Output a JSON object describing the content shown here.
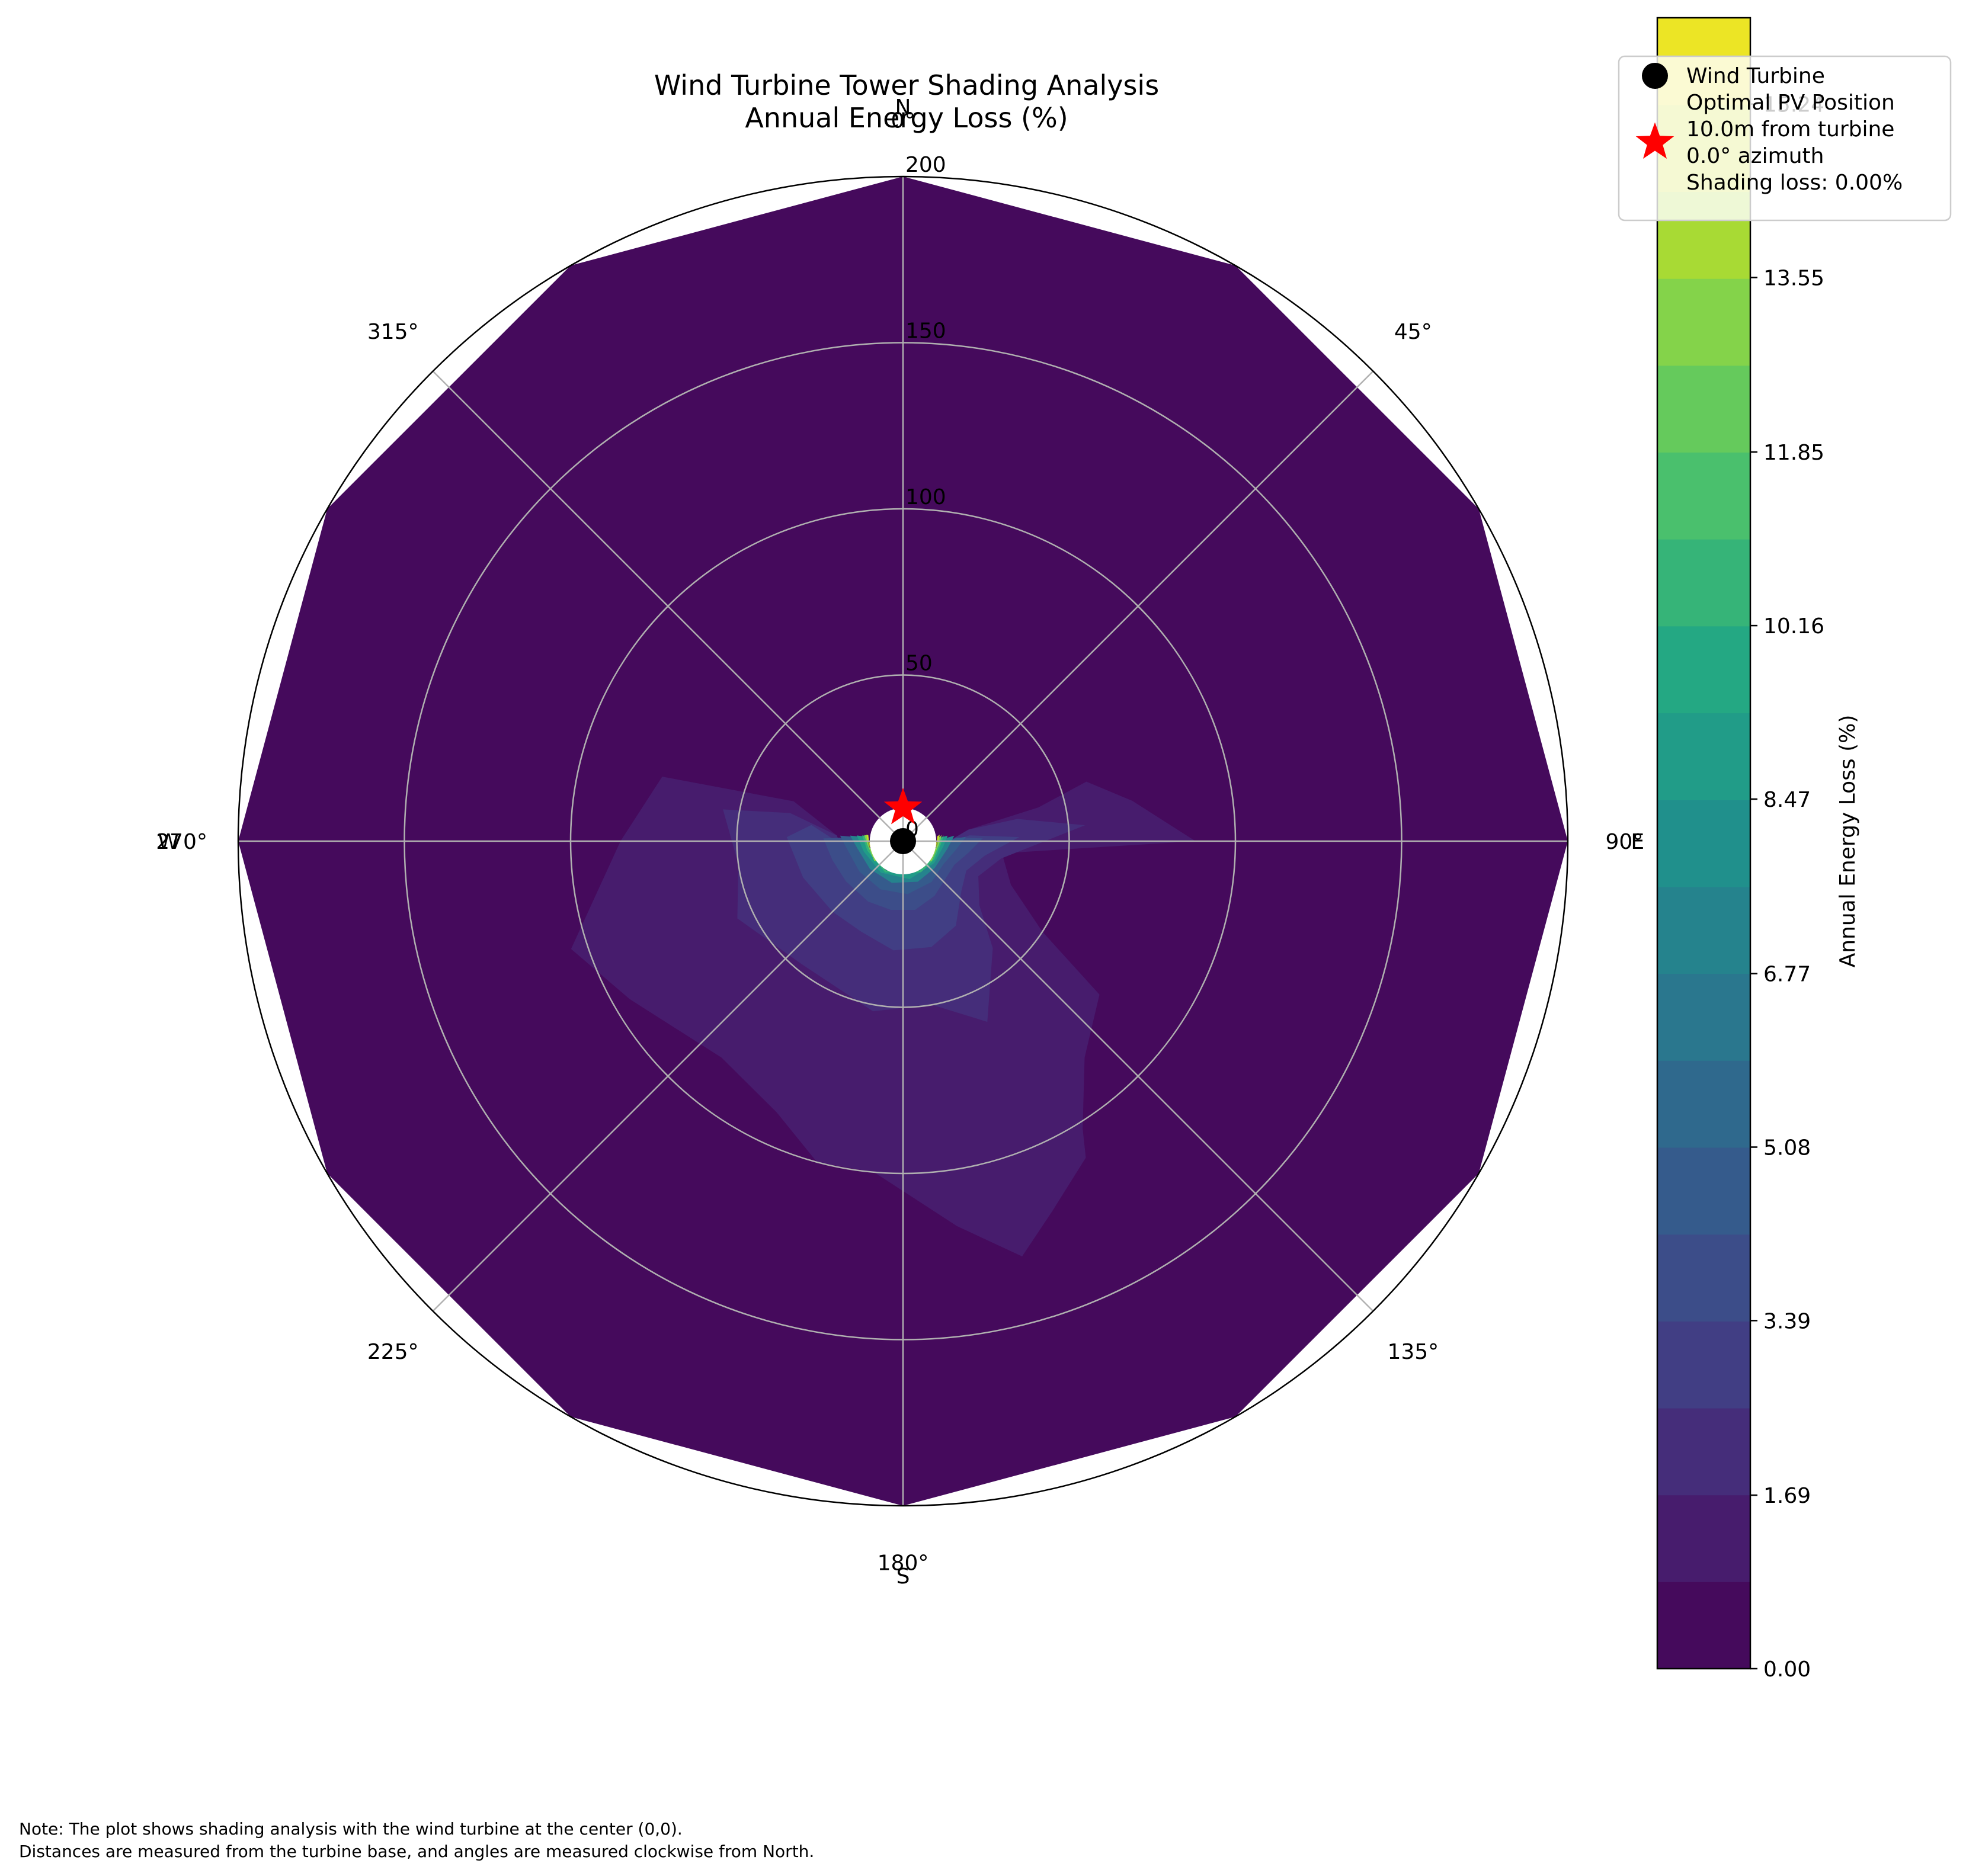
{
  "chart_data": {
    "type": "heatmap",
    "projection": "polar",
    "title_lines": [
      "Wind Turbine Tower Shading Analysis",
      "Annual Energy Loss (%)"
    ],
    "angle_direction": "clockwise",
    "zero_location": "N",
    "angle_ticks": [
      0,
      45,
      90,
      135,
      180,
      225,
      270,
      315
    ],
    "angle_tick_labels": [
      "0°",
      "45°",
      "90°",
      "135°",
      "180°",
      "225°",
      "270°",
      "315°"
    ],
    "cardinal_labels": [
      {
        "angle": 0,
        "text": "N"
      },
      {
        "angle": 90,
        "text": "E"
      },
      {
        "angle": 180,
        "text": "S"
      },
      {
        "angle": 270,
        "text": "W"
      }
    ],
    "radial_ticks": [
      0,
      50,
      100,
      150,
      200
    ],
    "radial_tick_labels": [
      "0",
      "50",
      "100",
      "150",
      "200"
    ],
    "rlim": [
      0,
      200
    ],
    "grid": true,
    "field": {
      "min_radius": 10,
      "max_radius": 200,
      "azimuth_step_deg": 30,
      "background_level": 0,
      "contours": [
        {
          "level": 1,
          "polygon": [
            [
              90,
              88
            ],
            [
              97,
              30
            ],
            [
              112,
              35
            ],
            [
              123,
              50
            ],
            [
              128,
              75
            ],
            [
              140,
              85
            ],
            [
              148,
              102
            ],
            [
              150,
              110
            ],
            [
              158,
              120
            ],
            [
              164,
              130
            ],
            [
              172,
              117
            ],
            [
              185,
              100
            ],
            [
              195,
              100
            ],
            [
              205,
              90
            ],
            [
              220,
              85
            ],
            [
              240,
              95
            ],
            [
              252,
              105
            ],
            [
              270,
              85
            ],
            [
              285,
              75
            ],
            [
              290,
              35
            ],
            [
              275,
              20
            ],
            [
              255,
              18
            ],
            [
              240,
              15
            ],
            [
              215,
              12
            ],
            [
              185,
              12
            ],
            [
              160,
              12
            ],
            [
              135,
              12
            ],
            [
              110,
              12
            ],
            [
              95,
              12
            ],
            [
              80,
              20
            ],
            [
              76,
              42
            ],
            [
              72,
              58
            ],
            [
              80,
              70
            ]
          ]
        },
        {
          "level": 2,
          "polygon": [
            [
              85,
              55
            ],
            [
              100,
              30
            ],
            [
              115,
              25
            ],
            [
              130,
              30
            ],
            [
              140,
              42
            ],
            [
              155,
              60
            ],
            [
              170,
              50
            ],
            [
              190,
              52
            ],
            [
              220,
              48
            ],
            [
              245,
              55
            ],
            [
              262,
              50
            ],
            [
              280,
              55
            ],
            [
              284,
              35
            ],
            [
              275,
              20
            ],
            [
              255,
              18
            ],
            [
              240,
              15
            ],
            [
              215,
              12
            ],
            [
              185,
              12
            ],
            [
              160,
              12
            ],
            [
              135,
              12
            ],
            [
              110,
              12
            ],
            [
              95,
              12
            ],
            [
              80,
              20
            ],
            [
              79,
              35
            ]
          ]
        },
        {
          "level": 3,
          "polygon": [
            [
              88,
              35
            ],
            [
              100,
              25
            ],
            [
              115,
              21
            ],
            [
              130,
              23
            ],
            [
              148,
              30
            ],
            [
              165,
              33
            ],
            [
              185,
              33
            ],
            [
              205,
              30
            ],
            [
              225,
              30
            ],
            [
              250,
              32
            ],
            [
              272,
              35
            ],
            [
              280,
              28
            ],
            [
              270,
              20
            ],
            [
              255,
              17
            ],
            [
              240,
              15
            ],
            [
              215,
              13
            ],
            [
              185,
              12
            ],
            [
              160,
              12
            ],
            [
              135,
              12
            ],
            [
              110,
              12
            ],
            [
              95,
              13
            ],
            [
              85,
              20
            ]
          ]
        },
        {
          "level": 4,
          "polygon": [
            [
              88,
              24
            ],
            [
              100,
              20
            ],
            [
              115,
              17
            ],
            [
              130,
              17
            ],
            [
              150,
              19
            ],
            [
              170,
              21
            ],
            [
              190,
              21
            ],
            [
              210,
              21
            ],
            [
              235,
              21
            ],
            [
              255,
              22
            ],
            [
              272,
              24
            ],
            [
              274,
              16
            ],
            [
              260,
              13
            ],
            [
              240,
              12
            ],
            [
              215,
              11
            ],
            [
              185,
              11
            ],
            [
              160,
              11
            ],
            [
              135,
              11
            ],
            [
              110,
              11
            ],
            [
              95,
              12
            ],
            [
              86,
              16
            ]
          ]
        },
        {
          "level": 5,
          "polygon": [
            [
              86,
              19
            ],
            [
              100,
              16
            ],
            [
              120,
              14
            ],
            [
              145,
              15
            ],
            [
              175,
              16
            ],
            [
              205,
              16
            ],
            [
              235,
              16
            ],
            [
              262,
              17
            ],
            [
              275,
              19
            ],
            [
              275,
              13
            ],
            [
              255,
              11
            ],
            [
              225,
              10.5
            ],
            [
              195,
              10.5
            ],
            [
              165,
              10.5
            ],
            [
              135,
              10.5
            ],
            [
              110,
              10.5
            ],
            [
              90,
              11
            ]
          ]
        },
        {
          "level": 7,
          "polygon": [
            [
              84,
              15.5
            ],
            [
              100,
              13.5
            ],
            [
              130,
              12.5
            ],
            [
              160,
              13
            ],
            [
              195,
              13
            ],
            [
              230,
              13
            ],
            [
              262,
              14
            ],
            [
              276,
              16
            ],
            [
              276,
              12
            ],
            [
              250,
              10.5
            ],
            [
              215,
              10.3
            ],
            [
              180,
              10.3
            ],
            [
              145,
              10.3
            ],
            [
              110,
              10.3
            ],
            [
              88,
              10.8
            ]
          ]
        },
        {
          "level": 9,
          "polygon": [
            [
              83,
              13.5
            ],
            [
              98,
              12.2
            ],
            [
              125,
              11.5
            ],
            [
              170,
              11.6
            ],
            [
              215,
              11.6
            ],
            [
              255,
              12.2
            ],
            [
              277,
              14
            ],
            [
              277,
              11.4
            ],
            [
              250,
              10.4
            ],
            [
              210,
              10.2
            ],
            [
              170,
              10.2
            ],
            [
              130,
              10.2
            ],
            [
              98,
              10.4
            ],
            [
              85,
              10.8
            ]
          ]
        },
        {
          "level": 11,
          "polygon": [
            [
              82,
              12.4
            ],
            [
              95,
              11.4
            ],
            [
              120,
              10.9
            ],
            [
              150,
              10.8
            ],
            [
              210,
              10.8
            ],
            [
              255,
              11.1
            ],
            [
              278,
              12.4
            ],
            [
              278,
              11.1
            ],
            [
              255,
              10.4
            ],
            [
              210,
              10.2
            ],
            [
              150,
              10.2
            ],
            [
              110,
              10.2
            ],
            [
              90,
              10.5
            ]
          ]
        },
        {
          "level": 13,
          "polygon": [
            [
              81,
              11.8
            ],
            [
              95,
              10.9
            ],
            [
              125,
              10.5
            ],
            [
              235,
              10.5
            ],
            [
              265,
              10.8
            ],
            [
              279,
              11.8
            ],
            [
              279,
              10.9
            ],
            [
              260,
              10.3
            ],
            [
              180,
              10.2
            ],
            [
              100,
              10.3
            ],
            [
              85,
              10.6
            ]
          ]
        },
        {
          "level": 15,
          "polygon": [
            [
              80,
              11.2
            ],
            [
              92,
              10.6
            ],
            [
              268,
              10.6
            ],
            [
              280,
              11.2
            ],
            [
              280,
              10.6
            ],
            [
              260,
              10.2
            ],
            [
              100,
              10.2
            ],
            [
              82,
              10.4
            ]
          ]
        }
      ]
    },
    "markers": [
      {
        "name": "Wind Turbine",
        "angle": 0,
        "r": 0,
        "symbol": "circle",
        "color": "#000000"
      },
      {
        "name": "Optimal PV Position",
        "angle": 0,
        "r": 10,
        "symbol": "star",
        "color": "#ff0000"
      }
    ],
    "colorbar": {
      "label": "Annual Energy Loss (%)",
      "min": 0.0,
      "max": 16.08,
      "levels": 19,
      "ticks": [
        0.0,
        1.69,
        3.39,
        5.08,
        6.77,
        8.47,
        10.16,
        11.85,
        13.55,
        15.24
      ],
      "tick_labels": [
        "0.00",
        "1.69",
        "3.39",
        "5.08",
        "6.77",
        "8.47",
        "10.16",
        "11.85",
        "13.55",
        "15.24"
      ],
      "colormap": "viridis"
    },
    "legend": {
      "placement": "top-right",
      "entries": [
        {
          "symbol": "circle",
          "color": "#000000",
          "lines": [
            "Wind Turbine"
          ]
        },
        {
          "symbol": "star",
          "color": "#ff0000",
          "lines": [
            "Optimal PV Position",
            "10.0m from turbine",
            "0.0° azimuth",
            "Shading loss: 0.00%"
          ]
        }
      ]
    }
  },
  "footnote": {
    "line1": "Note: The plot shows shading analysis with the wind turbine at the center (0,0).",
    "line2": "Distances are measured from the turbine base, and angles are measured clockwise from North."
  }
}
